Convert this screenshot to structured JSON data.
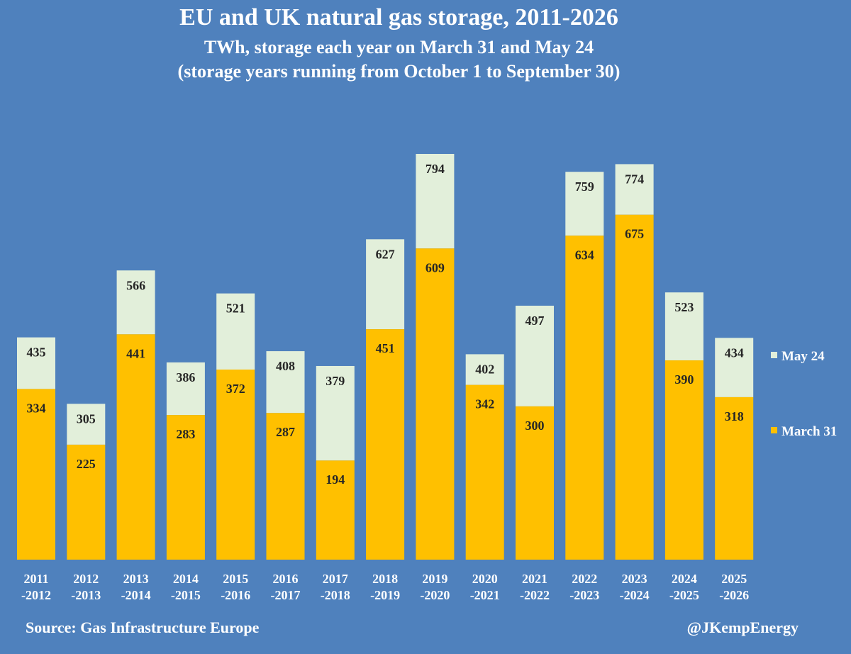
{
  "footer": {
    "source": "Source: Gas Infrastructure Europe",
    "handle": "@JKempEnergy"
  },
  "colors": {
    "background": "#4f81bd",
    "march31": "#ffc000",
    "may24": "#e2efda",
    "text": "#ffffff",
    "label_text": "#262626"
  },
  "chart_data": {
    "type": "bar",
    "title": "EU and UK natural gas storage, 2011-2026",
    "subtitle": "TWh, storage each year on March 31 and May 24",
    "subtitle2": "(storage years running from October 1 to September 30)",
    "categories": [
      [
        "2011",
        "-2012"
      ],
      [
        "2012",
        "-2013"
      ],
      [
        "2013",
        "-2014"
      ],
      [
        "2014",
        "-2015"
      ],
      [
        "2015",
        "-2016"
      ],
      [
        "2016",
        "-2017"
      ],
      [
        "2017",
        "-2018"
      ],
      [
        "2018",
        "-2019"
      ],
      [
        "2019",
        "-2020"
      ],
      [
        "2020",
        "-2021"
      ],
      [
        "2021",
        "-2022"
      ],
      [
        "2022",
        "-2023"
      ],
      [
        "2023",
        "-2024"
      ],
      [
        "2024",
        "-2025"
      ],
      [
        "2025",
        "-2026"
      ]
    ],
    "series": [
      {
        "name": "March 31",
        "color": "#ffc000",
        "values": [
          334,
          225,
          441,
          283,
          372,
          287,
          194,
          451,
          609,
          342,
          300,
          634,
          675,
          390,
          318
        ]
      },
      {
        "name": "May 24",
        "color": "#e2efda",
        "values": [
          435,
          305,
          566,
          386,
          521,
          408,
          379,
          627,
          794,
          402,
          497,
          759,
          774,
          523,
          434
        ]
      }
    ],
    "legend": "right",
    "legend_entries": [
      "May 24",
      "March 31"
    ],
    "grid": false,
    "ylim": [
      0,
      800
    ]
  }
}
